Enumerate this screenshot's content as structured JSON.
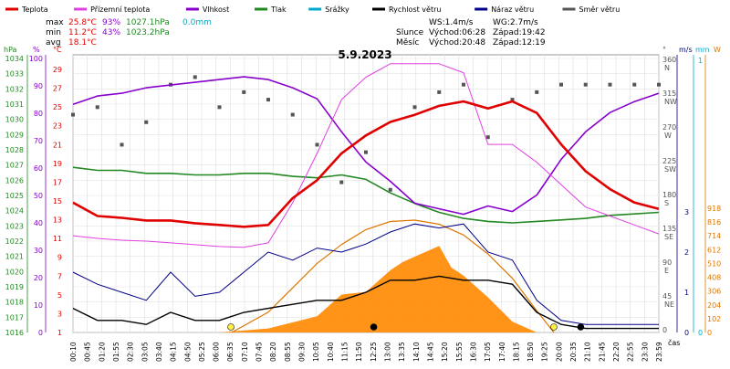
{
  "legend": [
    {
      "label": "Teplota",
      "color": "#e00000"
    },
    {
      "label": "Přízemní teplota",
      "color": "#e040e0"
    },
    {
      "label": "Vlhkost",
      "color": "#8800cc"
    },
    {
      "label": "Tlak",
      "color": "#228822"
    },
    {
      "label": "Srážky",
      "color": "#00aacc"
    },
    {
      "label": "Rychlost větru",
      "color": "#000000"
    },
    {
      "label": "Náraz větru",
      "color": "#000088"
    },
    {
      "label": "Směr větru",
      "color": "#555555"
    }
  ],
  "stats": {
    "max": {
      "label": "max",
      "temp": "25.8°C",
      "hum": "93%",
      "press": "1027.1hPa",
      "rain": "0.0mm"
    },
    "min": {
      "label": "min",
      "temp": "11.2°C",
      "hum": "43%",
      "press": "1023.2hPa"
    },
    "avg": {
      "label": "avg",
      "temp": "18.1°C"
    }
  },
  "wind_info": {
    "ws": "WS:1.4m/s",
    "wg": "WG:2.7m/s"
  },
  "sun": {
    "label": "Slunce",
    "rise": "Východ:06:28",
    "set": "Západ:19:42"
  },
  "moon": {
    "label": "Měsíc",
    "rise": "Východ:20:48",
    "set": "Západ:12:19"
  },
  "unit_labels": {
    "hpa": "hPa",
    "pct": "%",
    "degc": "°C",
    "deg": "°",
    "ms": "m/s",
    "mm": "mm",
    "w": "W",
    "time": "čas"
  },
  "colors": {
    "temp": "#e00000",
    "ground": "#e040e0",
    "hum": "#8800cc",
    "press": "#228822",
    "rain": "#00aacc",
    "wind": "#000000",
    "gust": "#000088",
    "dir": "#555555",
    "solar": "#ff8800",
    "solar_curve": "#dd7700"
  },
  "chart_data": {
    "type": "line",
    "title": "5.9.2023",
    "x_ticks": [
      "00:10",
      "00:45",
      "01:20",
      "01:55",
      "02:30",
      "03:05",
      "03:40",
      "04:15",
      "04:50",
      "05:25",
      "06:00",
      "06:35",
      "07:10",
      "07:45",
      "08:20",
      "08:55",
      "09:30",
      "10:05",
      "10:40",
      "11:15",
      "11:50",
      "12:25",
      "13:00",
      "13:35",
      "14:10",
      "14:45",
      "15:20",
      "15:55",
      "16:30",
      "17:05",
      "17:40",
      "18:15",
      "18:50",
      "19:25",
      "20:00",
      "20:35",
      "21:10",
      "21:45",
      "22:20",
      "22:55",
      "23:30",
      "23:59"
    ],
    "axes": {
      "pressure_hpa": {
        "ticks": [
          "1034",
          "1033",
          "1032",
          "1031",
          "1030",
          "1029",
          "1028",
          "1027",
          "1026",
          "1025",
          "1024",
          "1023",
          "1022",
          "1021",
          "1020",
          "1019",
          "1018",
          "1017",
          "1016"
        ]
      },
      "humidity_pct": {
        "ticks": [
          "100",
          "90",
          "80",
          "70",
          "60",
          "50",
          "40",
          "30",
          "20",
          "10",
          "0"
        ]
      },
      "temperature_c": {
        "ticks": [
          "29",
          "27",
          "25",
          "23",
          "21",
          "19",
          "17",
          "15",
          "13",
          "11",
          "9",
          "7",
          "5",
          "3",
          "1"
        ]
      },
      "wind_direction": {
        "ticks": [
          "360 N",
          "315 NW",
          "270 W",
          "225 SW",
          "180 S",
          "135 SE",
          "90 E",
          "45 NE",
          "0"
        ]
      },
      "wind_speed_ms": {
        "ticks": [
          "3",
          "2",
          "1",
          "0"
        ]
      },
      "rain_mm": {
        "ticks": [
          "1",
          "0"
        ]
      },
      "solar_w": {
        "ticks": [
          "918",
          "816",
          "714",
          "612",
          "510",
          "408",
          "306",
          "204",
          "102",
          "0"
        ]
      }
    },
    "series": [
      {
        "name": "Teplota",
        "unit": "°C",
        "x": [
          0,
          1,
          2,
          3,
          4,
          5,
          6,
          7,
          8,
          9,
          10,
          11,
          12,
          13,
          14,
          15,
          16,
          17,
          18,
          19,
          20,
          21,
          22,
          23,
          24
        ],
        "values": [
          14.5,
          13.0,
          12.8,
          12.5,
          12.5,
          12.2,
          12.0,
          11.8,
          12.0,
          15.0,
          17.0,
          20.0,
          22.0,
          23.5,
          24.3,
          25.3,
          25.8,
          25.0,
          25.8,
          24.5,
          21.0,
          18.0,
          16.0,
          14.5,
          13.8
        ]
      },
      {
        "name": "Přízemní teplota",
        "unit": "°C",
        "x": [
          0,
          1,
          2,
          3,
          4,
          5,
          6,
          7,
          8,
          9,
          10,
          11,
          12,
          13,
          14,
          15,
          16,
          17,
          18,
          19,
          20,
          21,
          22,
          23,
          24
        ],
        "values": [
          10.8,
          10.5,
          10.3,
          10.2,
          10.0,
          9.8,
          9.6,
          9.5,
          10.0,
          14.5,
          20.0,
          26.0,
          28.5,
          30.0,
          30.0,
          30.0,
          29.0,
          21.0,
          21.0,
          19.0,
          16.5,
          14.0,
          13.0,
          12.0,
          11.0
        ]
      },
      {
        "name": "Vlhkost",
        "unit": "%",
        "x": [
          0,
          1,
          2,
          3,
          4,
          5,
          6,
          7,
          8,
          9,
          10,
          11,
          12,
          13,
          14,
          15,
          16,
          17,
          18,
          19,
          20,
          21,
          22,
          23,
          24
        ],
        "values": [
          83,
          86,
          87,
          89,
          90,
          91,
          92,
          93,
          92,
          89,
          85,
          73,
          62,
          55,
          47,
          45,
          43,
          46,
          44,
          50,
          63,
          73,
          80,
          84,
          87
        ]
      },
      {
        "name": "Tlak",
        "unit": "hPa",
        "x": [
          0,
          1,
          2,
          3,
          4,
          5,
          6,
          7,
          8,
          9,
          10,
          11,
          12,
          13,
          14,
          15,
          16,
          17,
          18,
          19,
          20,
          21,
          22,
          23,
          24
        ],
        "values": [
          1027.0,
          1026.8,
          1026.8,
          1026.6,
          1026.6,
          1026.5,
          1026.5,
          1026.6,
          1026.6,
          1026.4,
          1026.3,
          1026.5,
          1026.2,
          1025.3,
          1024.6,
          1024.0,
          1023.6,
          1023.4,
          1023.3,
          1023.4,
          1023.5,
          1023.6,
          1023.8,
          1023.9,
          1024.0
        ]
      },
      {
        "name": "Rychlost větru",
        "unit": "m/s",
        "x": [
          0,
          1,
          2,
          3,
          4,
          5,
          6,
          7,
          8,
          9,
          10,
          11,
          12,
          13,
          14,
          15,
          16,
          17,
          18,
          19,
          20,
          21,
          22,
          23,
          24
        ],
        "values": [
          0.6,
          0.3,
          0.3,
          0.2,
          0.5,
          0.3,
          0.3,
          0.5,
          0.6,
          0.7,
          0.8,
          0.8,
          1.0,
          1.3,
          1.3,
          1.4,
          1.3,
          1.3,
          1.2,
          0.5,
          0.2,
          0.1,
          0.1,
          0.1,
          0.1
        ]
      },
      {
        "name": "Náraz větru",
        "unit": "m/s",
        "x": [
          0,
          1,
          2,
          3,
          4,
          5,
          6,
          7,
          8,
          9,
          10,
          11,
          12,
          13,
          14,
          15,
          16,
          17,
          18,
          19,
          20,
          21,
          22,
          23,
          24
        ],
        "values": [
          1.5,
          1.2,
          1.0,
          0.8,
          1.5,
          0.9,
          1.0,
          1.5,
          2.0,
          1.8,
          2.1,
          2.0,
          2.2,
          2.5,
          2.7,
          2.6,
          2.7,
          2.0,
          1.8,
          0.8,
          0.3,
          0.2,
          0.2,
          0.2,
          0.2
        ]
      },
      {
        "name": "Směr větru",
        "unit": "°",
        "x": [
          0,
          1,
          2,
          3,
          4,
          5,
          6,
          7,
          8,
          9,
          10,
          11,
          12,
          13,
          14,
          15,
          16,
          17,
          18,
          19,
          20,
          21,
          22,
          23,
          24
        ],
        "values": [
          290,
          300,
          250,
          280,
          330,
          340,
          300,
          320,
          310,
          290,
          250,
          200,
          240,
          190,
          300,
          320,
          330,
          260,
          310,
          320,
          330,
          330,
          330,
          330,
          330
        ]
      },
      {
        "name": "Solar",
        "unit": "W",
        "x": [
          6,
          8,
          10,
          11,
          12,
          12.5,
          13,
          13.5,
          14,
          14.5,
          15,
          15.5,
          16,
          17,
          18,
          19
        ],
        "values": [
          0,
          30,
          120,
          280,
          300,
          380,
          460,
          520,
          560,
          600,
          640,
          480,
          420,
          260,
          80,
          0
        ]
      },
      {
        "name": "Solar max",
        "unit": "W",
        "x": [
          6.5,
          8,
          9,
          10,
          11,
          12,
          13,
          14,
          15,
          16,
          17,
          18,
          19,
          19.7
        ],
        "values": [
          0,
          150,
          330,
          510,
          650,
          760,
          820,
          830,
          800,
          720,
          580,
          400,
          160,
          0
        ]
      }
    ],
    "rain": [
      0,
      0,
      0,
      0,
      0,
      0,
      0,
      0,
      0,
      0,
      0,
      0,
      0,
      0,
      0,
      0,
      0,
      0,
      0,
      0,
      0,
      0,
      0,
      0,
      0
    ]
  }
}
